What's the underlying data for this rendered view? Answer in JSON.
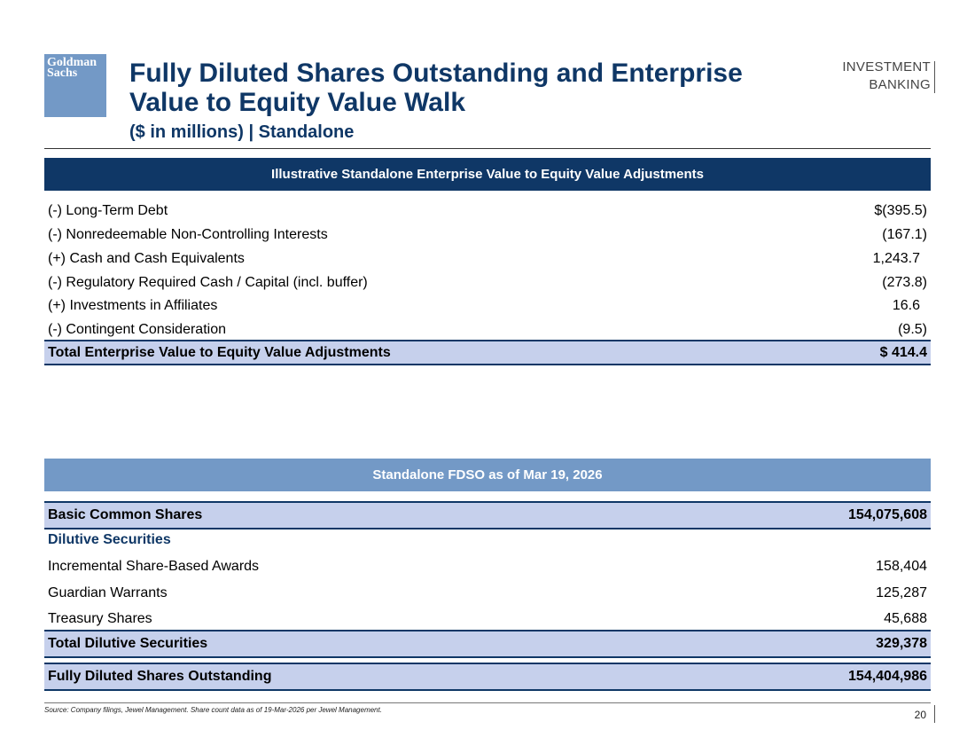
{
  "logo": {
    "line1": "Goldman",
    "line2": "Sachs"
  },
  "header": {
    "title": "Fully Diluted Shares Outstanding and Enterprise Value to Equity Value Walk",
    "subtitle": "($ in millions)  |  Standalone",
    "brand_line1": "INVESTMENT",
    "brand_line2": "BANKING"
  },
  "ev_table": {
    "header": "Illustrative Standalone Enterprise Value to Equity Value Adjustments",
    "rows": [
      {
        "label": "(-) Long-Term Debt",
        "value": "$(395.5)"
      },
      {
        "label": "(-) Nonredeemable Non-Controlling Interests",
        "value": "(167.1)"
      },
      {
        "label": "(+) Cash and Cash Equivalents",
        "value": "1,243.7"
      },
      {
        "label": "(-) Regulatory Required Cash / Capital (incl. buffer)",
        "value": "(273.8)"
      },
      {
        "label": "(+) Investments in Affiliates",
        "value": "16.6"
      },
      {
        "label": "(-) Contingent Consideration",
        "value": "(9.5)"
      }
    ],
    "total": {
      "label": "Total Enterprise Value to Equity Value Adjustments",
      "value": "$ 414.4"
    }
  },
  "fdso_table": {
    "header": "Standalone FDSO as of Mar 19, 2026",
    "basic": {
      "label": "Basic Common Shares",
      "value": "154,075,608"
    },
    "dilutive_label": "Dilutive Securities",
    "rows": [
      {
        "label": "Incremental Share-Based Awards",
        "value": "158,404"
      },
      {
        "label": "Guardian Warrants",
        "value": "125,287"
      },
      {
        "label": "Treasury Shares",
        "value": "45,688"
      }
    ],
    "total_dilutive": {
      "label": "Total Dilutive Securities",
      "value": "329,378"
    },
    "fdso": {
      "label": "Fully Diluted Shares Outstanding",
      "value": "154,404,986"
    }
  },
  "footer": {
    "source": "Source: Company filings, Jewel Management. Share count data as of 19-Mar-2026 per Jewel Management.",
    "page_number": "20"
  },
  "colors": {
    "navy": "#0f3766",
    "light_blue": "#7399c6",
    "total_fill": "#c6d0ec"
  }
}
